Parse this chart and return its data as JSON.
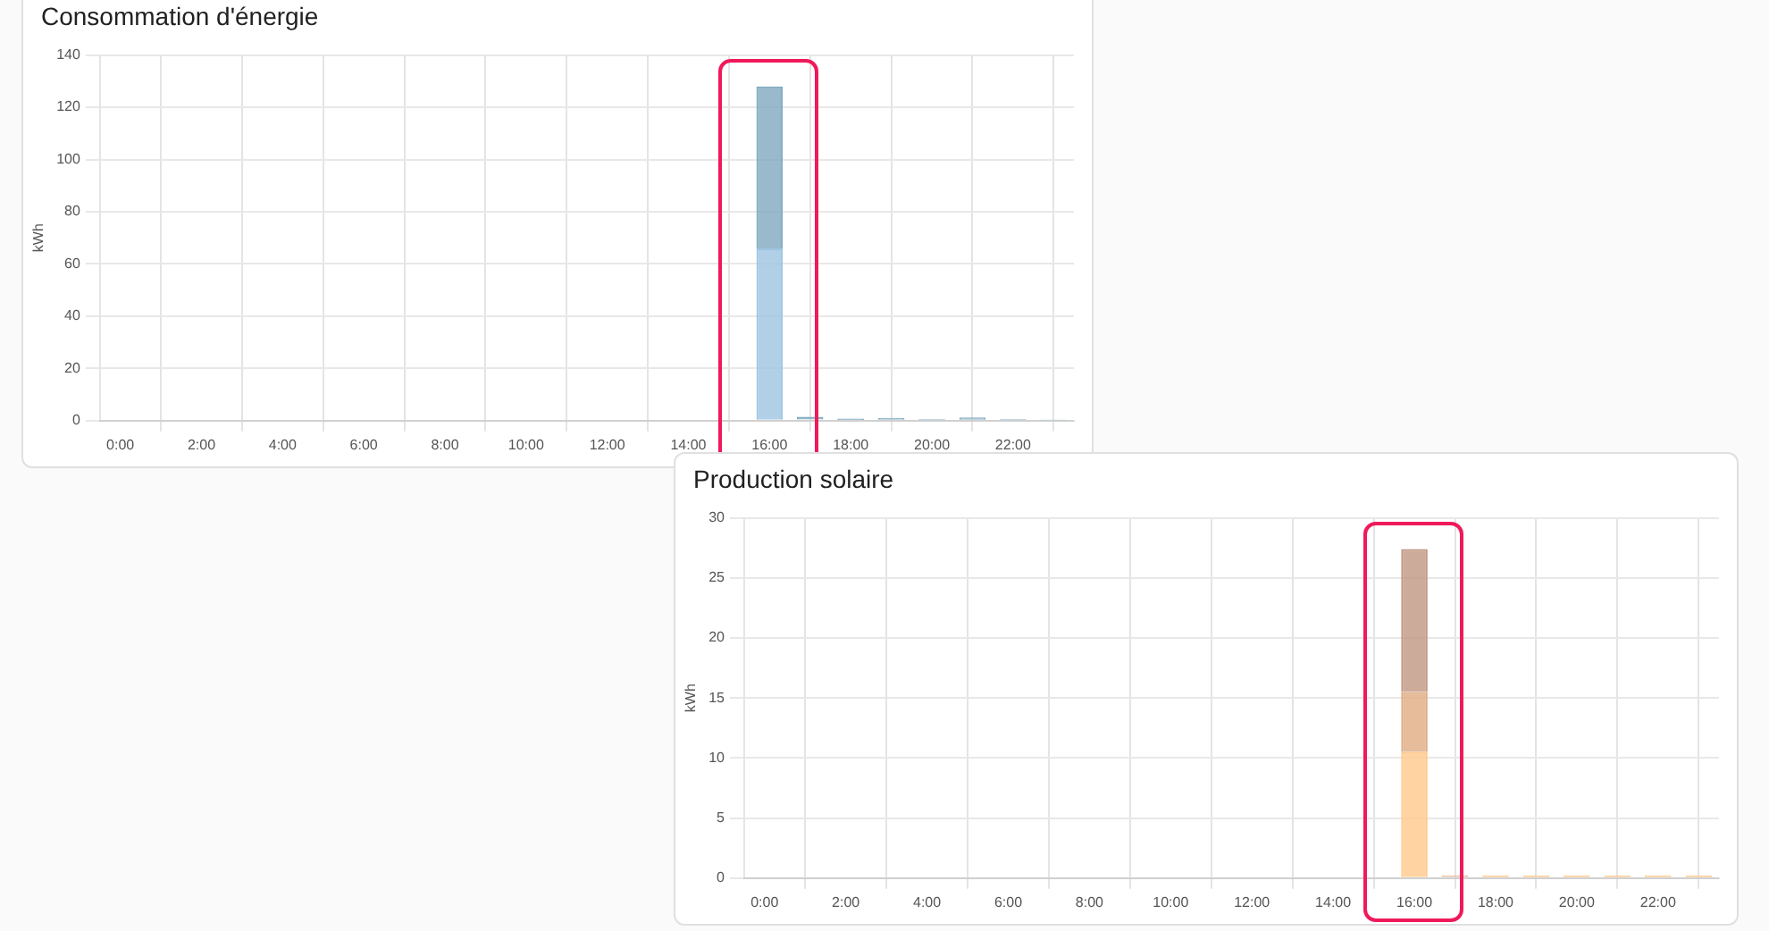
{
  "chart_data": [
    {
      "type": "bar",
      "title": "Consommation d'énergie",
      "ylabel": "kWh",
      "stacked": true,
      "grid": true,
      "legend": false,
      "categories": [
        "0:00",
        null,
        "2:00",
        null,
        "4:00",
        null,
        "6:00",
        null,
        "8:00",
        null,
        "10:00",
        null,
        "12:00",
        null,
        "14:00",
        null,
        "16:00",
        null,
        "18:00",
        null,
        "20:00",
        null,
        "22:00",
        null
      ],
      "series": [
        {
          "color": "#9dc4e2",
          "values": [
            0,
            0,
            0,
            0,
            0,
            0,
            0,
            0,
            0,
            0,
            0,
            0,
            0,
            0,
            0,
            0,
            66,
            0.5,
            0.3,
            0.4,
            0.3,
            0.4,
            0.3,
            0.2
          ]
        },
        {
          "color": "#7fa9c0",
          "values": [
            0,
            0,
            0,
            0,
            0,
            0,
            0,
            0,
            0,
            0,
            0,
            0,
            0,
            0,
            0,
            0,
            62,
            1,
            0.5,
            0.6,
            0.2,
            0.8,
            0.2,
            0.2
          ]
        }
      ],
      "ylim": [
        0,
        140
      ],
      "yticks": [
        0,
        20,
        40,
        60,
        80,
        100,
        120,
        140
      ]
    },
    {
      "type": "bar",
      "title": "Production solaire",
      "ylabel": "kWh",
      "stacked": true,
      "grid": true,
      "legend": false,
      "categories": [
        "0:00",
        null,
        "2:00",
        null,
        "4:00",
        null,
        "6:00",
        null,
        "8:00",
        null,
        "10:00",
        null,
        "12:00",
        null,
        "14:00",
        null,
        "16:00",
        null,
        "18:00",
        null,
        "20:00",
        null,
        "22:00",
        null
      ],
      "series": [
        {
          "color": "#ffc98b",
          "values": [
            0,
            0,
            0,
            0,
            0,
            0,
            0,
            0,
            0,
            0,
            0,
            0,
            0,
            0,
            0,
            0,
            10.5,
            0.1,
            0.2,
            0.2,
            0.2,
            0.2,
            0.2,
            0.2
          ]
        },
        {
          "color": "#e0ab82",
          "values": [
            0,
            0,
            0,
            0,
            0,
            0,
            0,
            0,
            0,
            0,
            0,
            0,
            0,
            0,
            0,
            0,
            5,
            0.1,
            0,
            0,
            0,
            0,
            0,
            0
          ]
        },
        {
          "color": "#c09682",
          "values": [
            0,
            0,
            0,
            0,
            0,
            0,
            0,
            0,
            0,
            0,
            0,
            0,
            0,
            0,
            0,
            0,
            11.9,
            0,
            0,
            0,
            0,
            0,
            0,
            0
          ]
        }
      ],
      "ylim": [
        0,
        30
      ],
      "yticks": [
        0,
        5,
        10,
        15,
        20,
        25,
        30
      ]
    }
  ]
}
